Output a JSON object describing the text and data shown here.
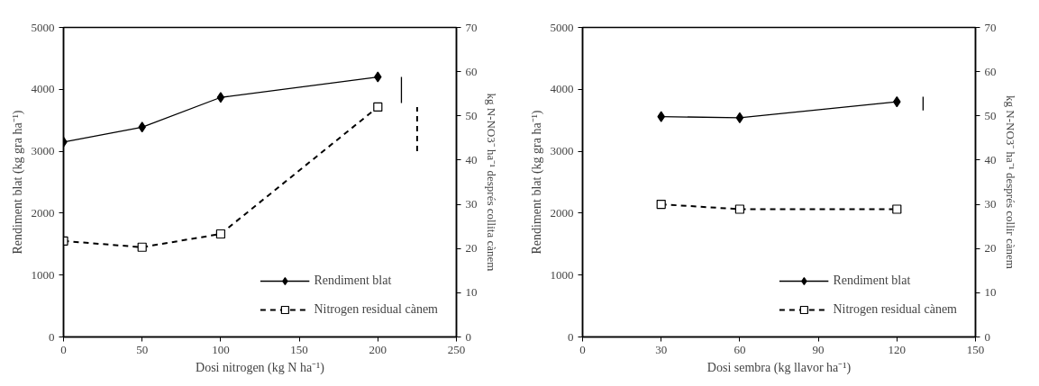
{
  "chart_data": [
    {
      "type": "line",
      "xlabel": "Dosi nitrogen (kg N ha⁻¹)",
      "ylabel": "Rendiment blat (kg gra ha⁻¹)",
      "y2label": "kg N-NO3⁻ ha⁻¹ després collita cànem",
      "xlim": [
        0,
        250
      ],
      "xticks": [
        0,
        50,
        100,
        150,
        200,
        250
      ],
      "ylim": [
        0,
        5000
      ],
      "yticks": [
        0,
        1000,
        2000,
        3000,
        4000,
        5000
      ],
      "y2lim": [
        0,
        70
      ],
      "y2ticks": [
        0,
        10,
        20,
        30,
        40,
        50,
        60,
        70
      ],
      "grid": false,
      "legend": "bottom right",
      "series": [
        {
          "name": "Rendiment blat",
          "color": "#000000",
          "x": [
            0,
            50,
            100,
            200
          ],
          "values": [
            3150,
            3390,
            3870,
            4200
          ],
          "marker": "diamond",
          "line_style": "solid"
        },
        {
          "name": "Nitrogen residual cànem",
          "color": "#000000",
          "x": [
            0,
            50,
            100,
            200
          ],
          "values": [
            21.7,
            20.3,
            23.3,
            52
          ],
          "marker": "square",
          "line_style": "dashed",
          "axis": "y2"
        },
        {
          "color": "#000000",
          "x": [
            215,
            215
          ],
          "values": [
            3780,
            4200
          ],
          "marker": "none",
          "line_style": "solid"
        },
        {
          "color": "#000000",
          "x": [
            225,
            225
          ],
          "values": [
            42,
            52
          ],
          "marker": "none",
          "line_style": "dashed",
          "axis": "y2"
        }
      ]
    },
    {
      "type": "line",
      "xlabel": "Dosi sembra (kg llavor ha⁻¹)",
      "ylabel": "Rendiment blat (kg gra ha⁻¹)",
      "y2label": "kg N-NO3⁻ ha⁻¹ després collir cànem",
      "xlim": [
        0,
        150
      ],
      "xticks": [
        0,
        30,
        60,
        90,
        120,
        150
      ],
      "ylim": [
        0,
        5000
      ],
      "yticks": [
        0,
        1000,
        2000,
        3000,
        4000,
        5000
      ],
      "y2lim": [
        0,
        70
      ],
      "y2ticks": [
        0,
        10,
        20,
        30,
        40,
        50,
        60,
        70
      ],
      "grid": false,
      "legend": "bottom right",
      "series": [
        {
          "name": "Rendiment blat",
          "color": "#000000",
          "x": [
            30,
            60,
            120
          ],
          "values": [
            3560,
            3540,
            3800
          ],
          "marker": "diamond",
          "line_style": "solid"
        },
        {
          "name": "Nitrogen residual cànem",
          "color": "#000000",
          "x": [
            30,
            60,
            120
          ],
          "values": [
            30.0,
            28.9,
            28.9
          ],
          "marker": "square",
          "line_style": "dashed",
          "axis": "y2"
        },
        {
          "color": "#000000",
          "x": [
            130,
            130
          ],
          "values": [
            3660,
            3880
          ],
          "marker": "none",
          "line_style": "solid"
        }
      ]
    }
  ]
}
